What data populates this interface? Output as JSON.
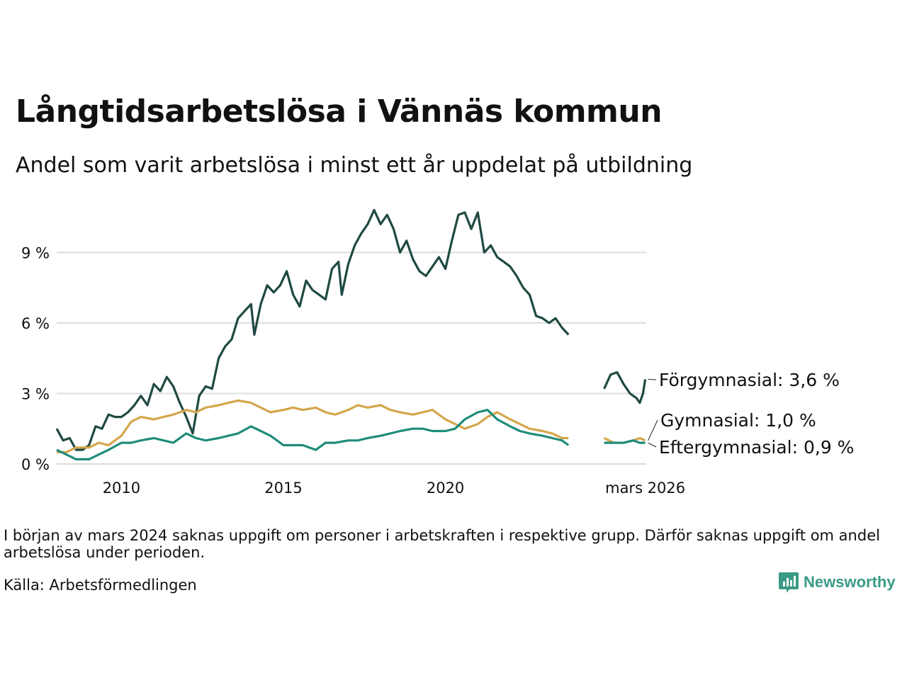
{
  "title": "Långtidsarbetslösa i Vännäs kommun",
  "subtitle": "Andel som varit arbetslösa i minst ett år uppdelat på utbildning",
  "note": "I början av mars 2024 saknas uppgift om personer i arbetskraften i respektive grupp. Därför saknas uppgift om andel arbetslösa under perioden.",
  "source": "Källa: Arbetsförmedlingen",
  "brand": {
    "name": "Newsworthy",
    "icon": "bar-chart-logo-icon",
    "color": "#3a9a85"
  },
  "chart_data": {
    "type": "line",
    "title": "Långtidsarbetslösa i Vännäs kommun",
    "xlabel": "",
    "ylabel": "",
    "xlim": [
      2008.0,
      2026.2
    ],
    "ylim": [
      0,
      11
    ],
    "y_ticks": [
      0,
      3,
      6,
      9
    ],
    "y_tick_labels": [
      "0 %",
      "3 %",
      "6 %",
      "9 %"
    ],
    "x_ticks": [
      2010,
      2015,
      2020,
      2026.17
    ],
    "x_tick_labels": [
      "2010",
      "2015",
      "2020",
      "mars 2026"
    ],
    "grid": true,
    "gap": [
      2023.75,
      2024.75
    ],
    "series": [
      {
        "name": "Förgymnasial",
        "label": "Förgymnasial: 3,6 %",
        "color": "#1f4a43",
        "points": [
          [
            2008.0,
            1.5
          ],
          [
            2008.2,
            1.0
          ],
          [
            2008.4,
            1.1
          ],
          [
            2008.6,
            0.6
          ],
          [
            2008.8,
            0.6
          ],
          [
            2009.0,
            0.8
          ],
          [
            2009.2,
            1.6
          ],
          [
            2009.4,
            1.5
          ],
          [
            2009.6,
            2.1
          ],
          [
            2009.8,
            2.0
          ],
          [
            2010.0,
            2.0
          ],
          [
            2010.2,
            2.2
          ],
          [
            2010.4,
            2.5
          ],
          [
            2010.6,
            2.9
          ],
          [
            2010.8,
            2.5
          ],
          [
            2011.0,
            3.4
          ],
          [
            2011.2,
            3.1
          ],
          [
            2011.4,
            3.7
          ],
          [
            2011.6,
            3.3
          ],
          [
            2011.8,
            2.6
          ],
          [
            2012.0,
            2.0
          ],
          [
            2012.2,
            1.3
          ],
          [
            2012.4,
            2.9
          ],
          [
            2012.6,
            3.3
          ],
          [
            2012.8,
            3.2
          ],
          [
            2013.0,
            4.5
          ],
          [
            2013.2,
            5.0
          ],
          [
            2013.4,
            5.3
          ],
          [
            2013.6,
            6.2
          ],
          [
            2013.8,
            6.5
          ],
          [
            2014.0,
            6.8
          ],
          [
            2014.1,
            5.5
          ],
          [
            2014.3,
            6.8
          ],
          [
            2014.5,
            7.6
          ],
          [
            2014.7,
            7.3
          ],
          [
            2014.9,
            7.6
          ],
          [
            2015.1,
            8.2
          ],
          [
            2015.3,
            7.2
          ],
          [
            2015.5,
            6.7
          ],
          [
            2015.7,
            7.8
          ],
          [
            2015.9,
            7.4
          ],
          [
            2016.1,
            7.2
          ],
          [
            2016.3,
            7.0
          ],
          [
            2016.5,
            8.3
          ],
          [
            2016.7,
            8.6
          ],
          [
            2016.8,
            7.2
          ],
          [
            2017.0,
            8.5
          ],
          [
            2017.2,
            9.3
          ],
          [
            2017.4,
            9.8
          ],
          [
            2017.6,
            10.2
          ],
          [
            2017.8,
            10.8
          ],
          [
            2018.0,
            10.2
          ],
          [
            2018.2,
            10.6
          ],
          [
            2018.4,
            10.0
          ],
          [
            2018.6,
            9.0
          ],
          [
            2018.8,
            9.5
          ],
          [
            2019.0,
            8.7
          ],
          [
            2019.2,
            8.2
          ],
          [
            2019.4,
            8.0
          ],
          [
            2019.6,
            8.4
          ],
          [
            2019.8,
            8.8
          ],
          [
            2020.0,
            8.3
          ],
          [
            2020.2,
            9.5
          ],
          [
            2020.4,
            10.6
          ],
          [
            2020.6,
            10.7
          ],
          [
            2020.8,
            10.0
          ],
          [
            2021.0,
            10.7
          ],
          [
            2021.2,
            9.0
          ],
          [
            2021.4,
            9.3
          ],
          [
            2021.6,
            8.8
          ],
          [
            2021.8,
            8.6
          ],
          [
            2022.0,
            8.4
          ],
          [
            2022.2,
            8.0
          ],
          [
            2022.4,
            7.5
          ],
          [
            2022.6,
            7.2
          ],
          [
            2022.8,
            6.3
          ],
          [
            2023.0,
            6.2
          ],
          [
            2023.2,
            6.0
          ],
          [
            2023.4,
            6.2
          ],
          [
            2023.6,
            5.8
          ],
          [
            2023.8,
            5.5
          ],
          [
            2024.9,
            3.2
          ],
          [
            2025.1,
            3.8
          ],
          [
            2025.3,
            3.9
          ],
          [
            2025.5,
            3.4
          ],
          [
            2025.7,
            3.0
          ],
          [
            2025.9,
            2.8
          ],
          [
            2026.0,
            2.6
          ],
          [
            2026.1,
            3.0
          ],
          [
            2026.17,
            3.6
          ]
        ]
      },
      {
        "name": "Gymnasial",
        "label": "Gymnasial: 1,0 %",
        "color": "#d4a64c",
        "points": [
          [
            2008.0,
            0.5
          ],
          [
            2008.3,
            0.5
          ],
          [
            2008.6,
            0.7
          ],
          [
            2009.0,
            0.7
          ],
          [
            2009.3,
            0.9
          ],
          [
            2009.6,
            0.8
          ],
          [
            2010.0,
            1.2
          ],
          [
            2010.3,
            1.8
          ],
          [
            2010.6,
            2.0
          ],
          [
            2011.0,
            1.9
          ],
          [
            2011.3,
            2.0
          ],
          [
            2011.6,
            2.1
          ],
          [
            2012.0,
            2.3
          ],
          [
            2012.3,
            2.2
          ],
          [
            2012.6,
            2.4
          ],
          [
            2013.0,
            2.5
          ],
          [
            2013.3,
            2.6
          ],
          [
            2013.6,
            2.7
          ],
          [
            2014.0,
            2.6
          ],
          [
            2014.3,
            2.4
          ],
          [
            2014.6,
            2.2
          ],
          [
            2015.0,
            2.3
          ],
          [
            2015.3,
            2.4
          ],
          [
            2015.6,
            2.3
          ],
          [
            2016.0,
            2.4
          ],
          [
            2016.3,
            2.2
          ],
          [
            2016.6,
            2.1
          ],
          [
            2017.0,
            2.3
          ],
          [
            2017.3,
            2.5
          ],
          [
            2017.6,
            2.4
          ],
          [
            2018.0,
            2.5
          ],
          [
            2018.3,
            2.3
          ],
          [
            2018.6,
            2.2
          ],
          [
            2019.0,
            2.1
          ],
          [
            2019.3,
            2.2
          ],
          [
            2019.6,
            2.3
          ],
          [
            2020.0,
            1.9
          ],
          [
            2020.3,
            1.7
          ],
          [
            2020.6,
            1.5
          ],
          [
            2021.0,
            1.7
          ],
          [
            2021.3,
            2.0
          ],
          [
            2021.6,
            2.2
          ],
          [
            2022.0,
            1.9
          ],
          [
            2022.3,
            1.7
          ],
          [
            2022.6,
            1.5
          ],
          [
            2023.0,
            1.4
          ],
          [
            2023.3,
            1.3
          ],
          [
            2023.6,
            1.1
          ],
          [
            2023.8,
            1.1
          ],
          [
            2024.9,
            1.1
          ],
          [
            2025.2,
            0.9
          ],
          [
            2025.5,
            0.9
          ],
          [
            2025.8,
            1.0
          ],
          [
            2026.0,
            1.1
          ],
          [
            2026.17,
            1.0
          ]
        ]
      },
      {
        "name": "Eftergymnasial",
        "label": "Eftergymnasial: 0,9 %",
        "color": "#1f8c7a",
        "points": [
          [
            2008.0,
            0.6
          ],
          [
            2008.3,
            0.4
          ],
          [
            2008.6,
            0.2
          ],
          [
            2009.0,
            0.2
          ],
          [
            2009.3,
            0.4
          ],
          [
            2009.6,
            0.6
          ],
          [
            2010.0,
            0.9
          ],
          [
            2010.3,
            0.9
          ],
          [
            2010.6,
            1.0
          ],
          [
            2011.0,
            1.1
          ],
          [
            2011.3,
            1.0
          ],
          [
            2011.6,
            0.9
          ],
          [
            2012.0,
            1.3
          ],
          [
            2012.3,
            1.1
          ],
          [
            2012.6,
            1.0
          ],
          [
            2013.0,
            1.1
          ],
          [
            2013.3,
            1.2
          ],
          [
            2013.6,
            1.3
          ],
          [
            2014.0,
            1.6
          ],
          [
            2014.3,
            1.4
          ],
          [
            2014.6,
            1.2
          ],
          [
            2015.0,
            0.8
          ],
          [
            2015.3,
            0.8
          ],
          [
            2015.6,
            0.8
          ],
          [
            2016.0,
            0.6
          ],
          [
            2016.3,
            0.9
          ],
          [
            2016.6,
            0.9
          ],
          [
            2017.0,
            1.0
          ],
          [
            2017.3,
            1.0
          ],
          [
            2017.6,
            1.1
          ],
          [
            2018.0,
            1.2
          ],
          [
            2018.3,
            1.3
          ],
          [
            2018.6,
            1.4
          ],
          [
            2019.0,
            1.5
          ],
          [
            2019.3,
            1.5
          ],
          [
            2019.6,
            1.4
          ],
          [
            2020.0,
            1.4
          ],
          [
            2020.3,
            1.5
          ],
          [
            2020.6,
            1.9
          ],
          [
            2021.0,
            2.2
          ],
          [
            2021.3,
            2.3
          ],
          [
            2021.6,
            1.9
          ],
          [
            2022.0,
            1.6
          ],
          [
            2022.3,
            1.4
          ],
          [
            2022.6,
            1.3
          ],
          [
            2023.0,
            1.2
          ],
          [
            2023.3,
            1.1
          ],
          [
            2023.6,
            1.0
          ],
          [
            2023.8,
            0.8
          ],
          [
            2024.9,
            0.9
          ],
          [
            2025.2,
            0.9
          ],
          [
            2025.5,
            0.9
          ],
          [
            2025.8,
            1.0
          ],
          [
            2026.0,
            0.9
          ],
          [
            2026.17,
            0.9
          ]
        ]
      }
    ]
  }
}
